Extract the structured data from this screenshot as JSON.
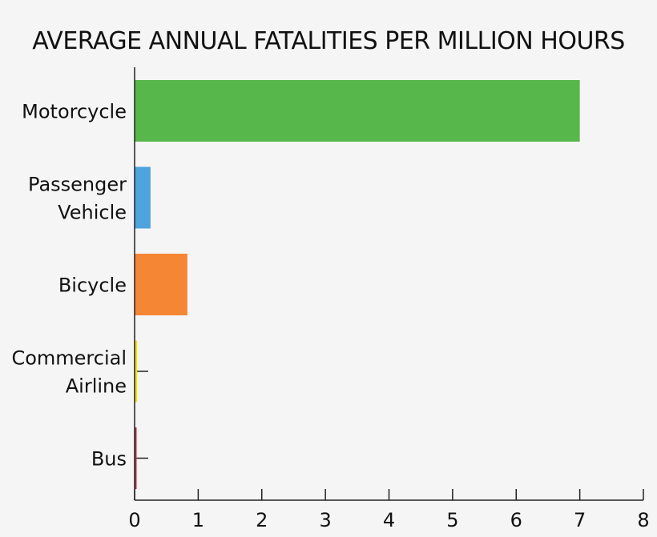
{
  "chart_data": {
    "type": "bar",
    "orientation": "horizontal",
    "title": "AVERAGE ANNUAL FATALITIES PER MILLION HOURS",
    "categories": [
      [
        "Motorcycle"
      ],
      [
        "Passenger",
        "Vehicle"
      ],
      [
        "Bicycle"
      ],
      [
        "Commercial",
        "Airline"
      ],
      [
        "Bus"
      ]
    ],
    "values": [
      7.0,
      0.25,
      0.83,
      0.04,
      0.03
    ],
    "colors": [
      "#58b74b",
      "#4ea3dc",
      "#f58634",
      "#f2e21c",
      "#b9333a"
    ],
    "xlabel": "",
    "ylabel": "",
    "xlim": [
      0,
      8
    ],
    "xticks": [
      "0",
      "1",
      "2",
      "3",
      "4",
      "5",
      "6",
      "7",
      "8"
    ],
    "grid": false,
    "legend": "none"
  }
}
